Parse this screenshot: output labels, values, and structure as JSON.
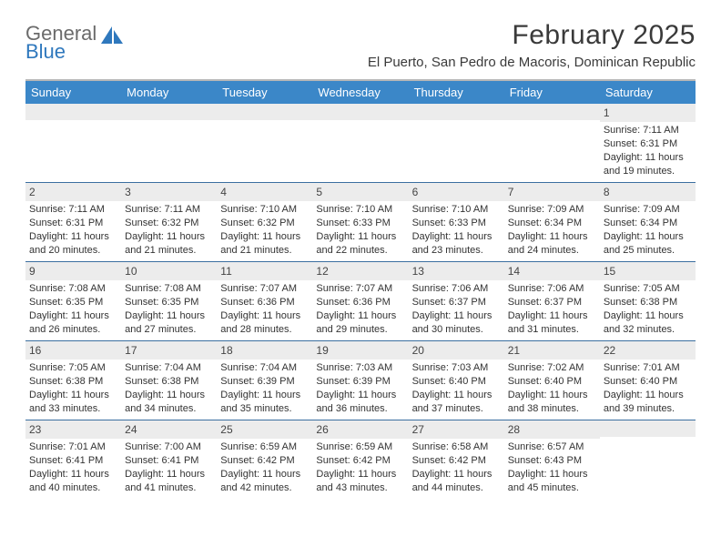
{
  "brand": {
    "word1": "General",
    "word2": "Blue"
  },
  "title": "February 2025",
  "subtitle": "El Puerto, San Pedro de Macoris, Dominican Republic",
  "colors": {
    "header_bar": "#3b87c8",
    "header_text": "#ffffff",
    "week_divider": "#3b6fa0",
    "daynum_bg": "#ececec",
    "body_text": "#333333",
    "brand_gray": "#6b6b6b",
    "brand_blue": "#2f78bd",
    "top_rule": "#b7b7b7"
  },
  "fonts": {
    "family": "Arial",
    "title_size": 30,
    "subtitle_size": 15,
    "dow_size": 13,
    "cell_size": 11
  },
  "dow": [
    "Sunday",
    "Monday",
    "Tuesday",
    "Wednesday",
    "Thursday",
    "Friday",
    "Saturday"
  ],
  "labels": {
    "sunrise": "Sunrise:",
    "sunset": "Sunset:",
    "daylight": "Daylight:"
  },
  "weeks": [
    [
      null,
      null,
      null,
      null,
      null,
      null,
      {
        "n": 1,
        "sr": "7:11 AM",
        "ss": "6:31 PM",
        "dl": "11 hours and 19 minutes."
      }
    ],
    [
      {
        "n": 2,
        "sr": "7:11 AM",
        "ss": "6:31 PM",
        "dl": "11 hours and 20 minutes."
      },
      {
        "n": 3,
        "sr": "7:11 AM",
        "ss": "6:32 PM",
        "dl": "11 hours and 21 minutes."
      },
      {
        "n": 4,
        "sr": "7:10 AM",
        "ss": "6:32 PM",
        "dl": "11 hours and 21 minutes."
      },
      {
        "n": 5,
        "sr": "7:10 AM",
        "ss": "6:33 PM",
        "dl": "11 hours and 22 minutes."
      },
      {
        "n": 6,
        "sr": "7:10 AM",
        "ss": "6:33 PM",
        "dl": "11 hours and 23 minutes."
      },
      {
        "n": 7,
        "sr": "7:09 AM",
        "ss": "6:34 PM",
        "dl": "11 hours and 24 minutes."
      },
      {
        "n": 8,
        "sr": "7:09 AM",
        "ss": "6:34 PM",
        "dl": "11 hours and 25 minutes."
      }
    ],
    [
      {
        "n": 9,
        "sr": "7:08 AM",
        "ss": "6:35 PM",
        "dl": "11 hours and 26 minutes."
      },
      {
        "n": 10,
        "sr": "7:08 AM",
        "ss": "6:35 PM",
        "dl": "11 hours and 27 minutes."
      },
      {
        "n": 11,
        "sr": "7:07 AM",
        "ss": "6:36 PM",
        "dl": "11 hours and 28 minutes."
      },
      {
        "n": 12,
        "sr": "7:07 AM",
        "ss": "6:36 PM",
        "dl": "11 hours and 29 minutes."
      },
      {
        "n": 13,
        "sr": "7:06 AM",
        "ss": "6:37 PM",
        "dl": "11 hours and 30 minutes."
      },
      {
        "n": 14,
        "sr": "7:06 AM",
        "ss": "6:37 PM",
        "dl": "11 hours and 31 minutes."
      },
      {
        "n": 15,
        "sr": "7:05 AM",
        "ss": "6:38 PM",
        "dl": "11 hours and 32 minutes."
      }
    ],
    [
      {
        "n": 16,
        "sr": "7:05 AM",
        "ss": "6:38 PM",
        "dl": "11 hours and 33 minutes."
      },
      {
        "n": 17,
        "sr": "7:04 AM",
        "ss": "6:38 PM",
        "dl": "11 hours and 34 minutes."
      },
      {
        "n": 18,
        "sr": "7:04 AM",
        "ss": "6:39 PM",
        "dl": "11 hours and 35 minutes."
      },
      {
        "n": 19,
        "sr": "7:03 AM",
        "ss": "6:39 PM",
        "dl": "11 hours and 36 minutes."
      },
      {
        "n": 20,
        "sr": "7:03 AM",
        "ss": "6:40 PM",
        "dl": "11 hours and 37 minutes."
      },
      {
        "n": 21,
        "sr": "7:02 AM",
        "ss": "6:40 PM",
        "dl": "11 hours and 38 minutes."
      },
      {
        "n": 22,
        "sr": "7:01 AM",
        "ss": "6:40 PM",
        "dl": "11 hours and 39 minutes."
      }
    ],
    [
      {
        "n": 23,
        "sr": "7:01 AM",
        "ss": "6:41 PM",
        "dl": "11 hours and 40 minutes."
      },
      {
        "n": 24,
        "sr": "7:00 AM",
        "ss": "6:41 PM",
        "dl": "11 hours and 41 minutes."
      },
      {
        "n": 25,
        "sr": "6:59 AM",
        "ss": "6:42 PM",
        "dl": "11 hours and 42 minutes."
      },
      {
        "n": 26,
        "sr": "6:59 AM",
        "ss": "6:42 PM",
        "dl": "11 hours and 43 minutes."
      },
      {
        "n": 27,
        "sr": "6:58 AM",
        "ss": "6:42 PM",
        "dl": "11 hours and 44 minutes."
      },
      {
        "n": 28,
        "sr": "6:57 AM",
        "ss": "6:43 PM",
        "dl": "11 hours and 45 minutes."
      },
      null
    ]
  ]
}
